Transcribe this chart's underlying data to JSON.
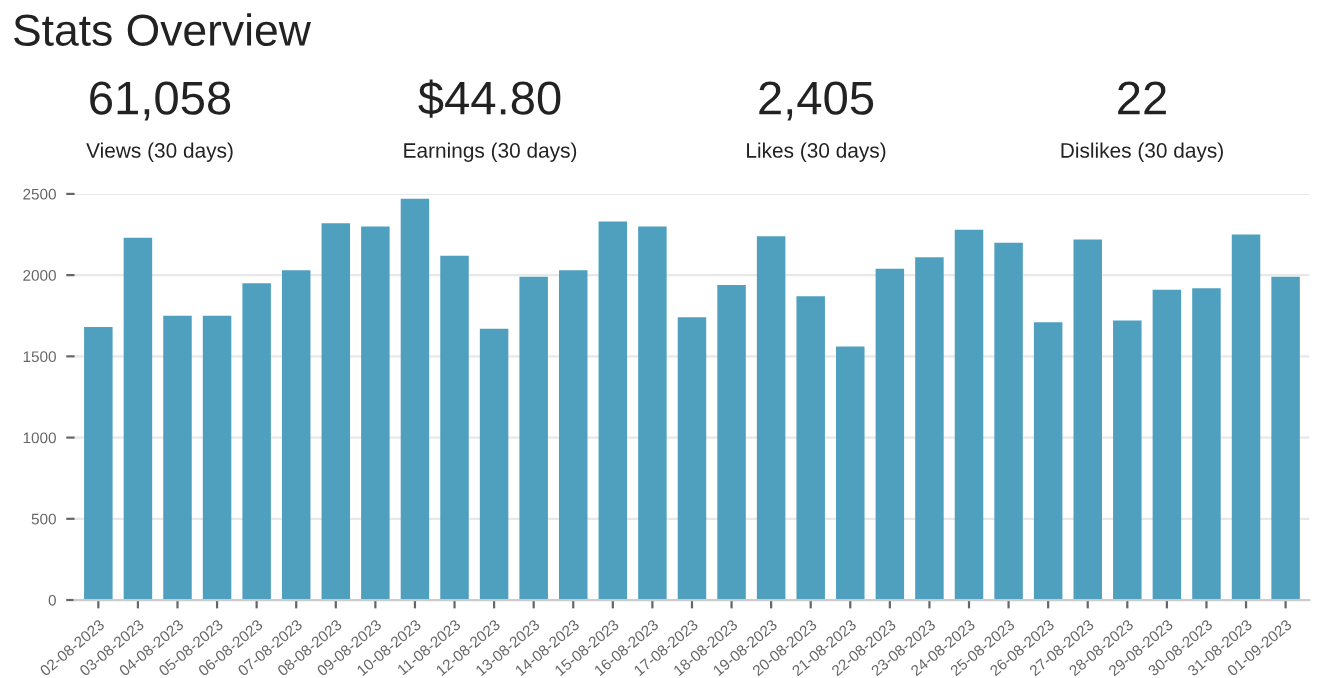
{
  "chart_data": [
    {
      "type": "other",
      "title": "Stats Overview",
      "annotations": [
        "61,058",
        "Views (30 days)",
        "$44.80",
        "Earnings (30 days)",
        "2,405",
        "Likes (30 days)",
        "22",
        "Dislikes (30 days)"
      ]
    },
    {
      "type": "bar",
      "categories": [
        "02-08-2023",
        "03-08-2023",
        "04-08-2023",
        "05-08-2023",
        "06-08-2023",
        "07-08-2023",
        "08-08-2023",
        "09-08-2023",
        "10-08-2023",
        "11-08-2023",
        "12-08-2023",
        "13-08-2023",
        "14-08-2023",
        "15-08-2023",
        "16-08-2023",
        "17-08-2023",
        "18-08-2023",
        "19-08-2023",
        "20-08-2023",
        "21-08-2023",
        "22-08-2023",
        "23-08-2023",
        "24-08-2023",
        "25-08-2023",
        "26-08-2023",
        "27-08-2023",
        "28-08-2023",
        "29-08-2023",
        "30-08-2023",
        "31-08-2023",
        "01-09-2023"
      ],
      "values": [
        1680,
        2230,
        1750,
        1750,
        1950,
        2030,
        2320,
        2300,
        2470,
        2120,
        1670,
        1990,
        2030,
        2330,
        2300,
        1740,
        1940,
        2240,
        1870,
        1560,
        2040,
        2110,
        2280,
        2200,
        1710,
        2220,
        1720,
        1910,
        1920,
        2250,
        1990
      ],
      "color": "#4f9fbf",
      "ylim": [
        0,
        2500
      ],
      "yticks": [
        0,
        500,
        1000,
        1500,
        2000,
        2500
      ],
      "grid": "y",
      "legend": false
    }
  ]
}
